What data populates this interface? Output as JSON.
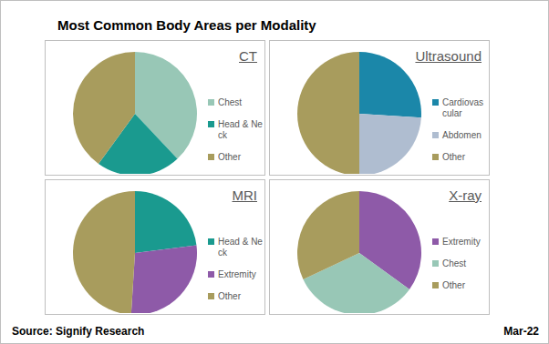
{
  "title": "Most Common Body Areas per Modality",
  "source": "Source: Signify Research",
  "date": "Mar-22",
  "chart_data": [
    {
      "type": "pie",
      "title": "CT",
      "categories": [
        "Chest",
        "Head & Neck",
        "Other"
      ],
      "values": [
        38,
        22,
        40
      ],
      "colors": [
        "#98c7b6",
        "#1a9a8f",
        "#a89c5d"
      ]
    },
    {
      "type": "pie",
      "title": "Ultrasound",
      "categories": [
        "Cardiovascular",
        "Abdomen",
        "Other"
      ],
      "values": [
        26,
        24,
        50
      ],
      "colors": [
        "#1b87a9",
        "#afbdd0",
        "#a89c5d"
      ]
    },
    {
      "type": "pie",
      "title": "MRI",
      "categories": [
        "Head & Neck",
        "Extremity",
        "Other"
      ],
      "values": [
        23,
        28,
        49
      ],
      "colors": [
        "#1a9a8f",
        "#8e5aa8",
        "#a89c5d"
      ]
    },
    {
      "type": "pie",
      "title": "X-ray",
      "categories": [
        "Extremity",
        "Chest",
        "Other"
      ],
      "values": [
        35,
        33,
        32
      ],
      "colors": [
        "#8e5aa8",
        "#98c7b6",
        "#a89c5d"
      ]
    }
  ]
}
